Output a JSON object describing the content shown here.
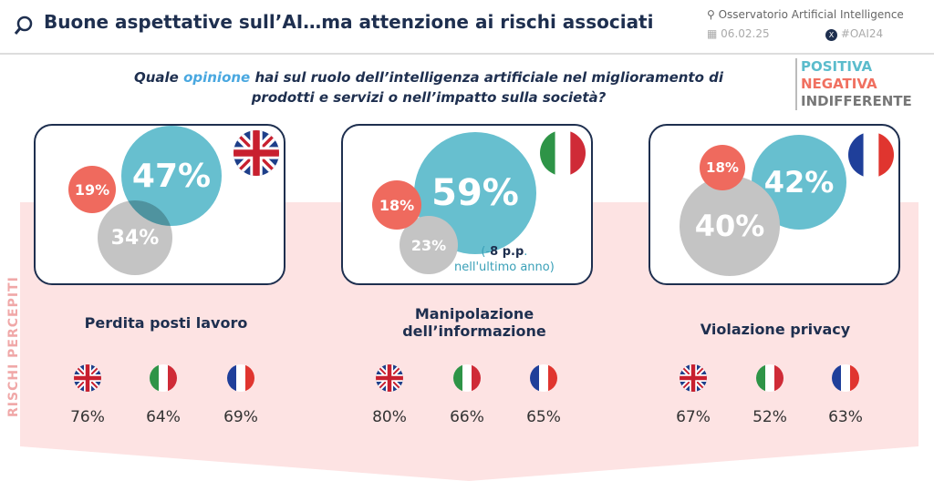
{
  "header": {
    "title": "Buone aspettative sull’AI…ma attenzione ai rischi associati",
    "org": "Osservatorio Artificial Intelligence",
    "date": "06.02.25",
    "hashtag": "#OAI24"
  },
  "question": {
    "pre": "Quale ",
    "highlight": "opinione",
    "post": " hai sul ruolo dell’intelligenza artificiale nel miglioramento di prodotti e servizi o nell’impatto sulla società?"
  },
  "legend": [
    {
      "label": "POSITIVA",
      "color": "#5bbccc"
    },
    {
      "label": "NEGATIVA",
      "color": "#f07060"
    },
    {
      "label": "INDIFFERENTE",
      "color": "#777777"
    }
  ],
  "colors": {
    "positive": "#67bfcf",
    "negative": "#ef6a5e",
    "indifferent": "#c4c4c4",
    "band": "#fde3e3"
  },
  "countries": [
    {
      "flag": "uk-flag",
      "positive": "47%",
      "negative": "19%",
      "indifferent": "34%"
    },
    {
      "flag": "italy-flag",
      "positive": "59%",
      "negative": "18%",
      "indifferent": "23%",
      "note_pre": "(-",
      "note_bold": "8 p.p",
      "note_post": ".",
      "note_line2": "nell'ultimo anno)"
    },
    {
      "flag": "france-flag",
      "positive": "42%",
      "negative": "18%",
      "indifferent": "40%"
    }
  ],
  "risks_label": "RISCHI PERCEPITI",
  "risks": [
    {
      "title": "Perdita posti lavoro",
      "values": [
        "76%",
        "64%",
        "69%"
      ]
    },
    {
      "title": "Manipolazione dell’informazione",
      "values": [
        "80%",
        "66%",
        "65%"
      ]
    },
    {
      "title": "Violazione privacy",
      "values": [
        "67%",
        "52%",
        "63%"
      ]
    }
  ]
}
